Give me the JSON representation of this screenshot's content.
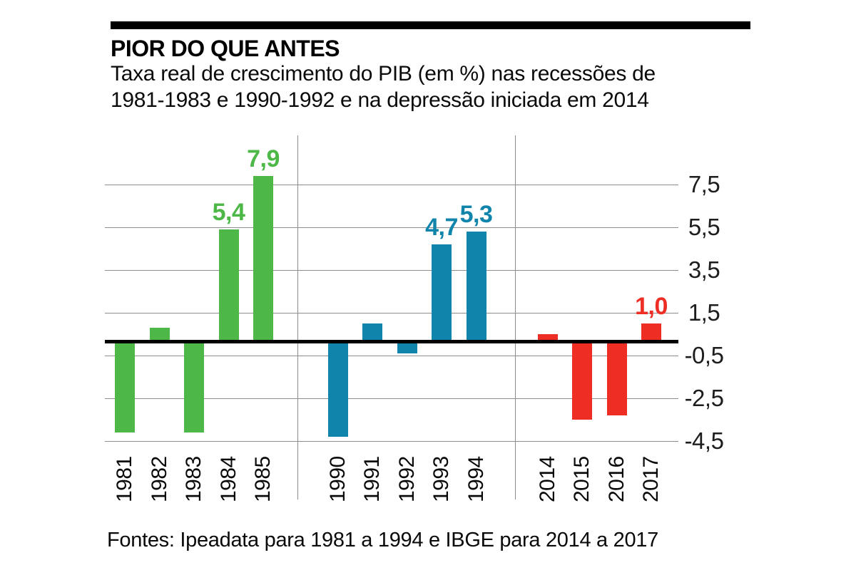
{
  "header": {
    "title": "PIOR DO QUE ANTES",
    "subtitle_line1": "Taxa real de crescimento do PIB (em %) nas recessões de",
    "subtitle_line2": "1981-1983 e 1990-1992 e na depressão iniciada em 2014"
  },
  "footer": {
    "source": "Fontes: Ipeadata para 1981 a 1994 e IBGE para 2014 a 2017"
  },
  "colors": {
    "green_recession_1981": "#4DB848",
    "blue_recession_1990": "#1184AC",
    "red_depression_2014": "#EE2E24",
    "gridline": "#8c8c8c",
    "zero_line": "#000000",
    "text": "#0a0a0a"
  },
  "chart_data": {
    "type": "bar",
    "title": "PIOR DO QUE ANTES",
    "subtitle": "Taxa real de crescimento do PIB (em %) nas recessões de 1981-1983 e 1990-1992 e na depressão iniciada em 2014",
    "xlabel": "",
    "ylabel": "",
    "ylim": [
      -5.3,
      9.8
    ],
    "grid": true,
    "legend": false,
    "decimal_separator": ",",
    "yticks": [
      {
        "label": "7,5",
        "value": 7.5
      },
      {
        "label": "5,5",
        "value": 5.5
      },
      {
        "label": "3,5",
        "value": 3.5
      },
      {
        "label": "1,5",
        "value": 1.5
      },
      {
        "label": "-0,5",
        "value": -0.5
      },
      {
        "label": "-2,5",
        "value": -2.5
      },
      {
        "label": "-4,5",
        "value": -4.5
      }
    ],
    "groups": [
      {
        "id": "recessao-1981-1983",
        "color": "#4DB848",
        "bars": [
          {
            "year": "1981",
            "value": -4.1,
            "label": ""
          },
          {
            "year": "1982",
            "value": 0.8,
            "label": ""
          },
          {
            "year": "1983",
            "value": -4.1,
            "label": ""
          },
          {
            "year": "1984",
            "value": 5.4,
            "label": "5,4"
          },
          {
            "year": "1985",
            "value": 7.9,
            "label": "7,9"
          }
        ]
      },
      {
        "id": "recessao-1990-1992",
        "color": "#1184AC",
        "bars": [
          {
            "year": "1990",
            "value": -4.3,
            "label": ""
          },
          {
            "year": "1991",
            "value": 1.0,
            "label": ""
          },
          {
            "year": "1992",
            "value": -0.4,
            "label": ""
          },
          {
            "year": "1993",
            "value": 4.7,
            "label": "4,7"
          },
          {
            "year": "1994",
            "value": 5.3,
            "label": "5,3"
          }
        ]
      },
      {
        "id": "depressao-2014",
        "color": "#EE2E24",
        "bars": [
          {
            "year": "2014",
            "value": 0.5,
            "label": ""
          },
          {
            "year": "2015",
            "value": -3.5,
            "label": ""
          },
          {
            "year": "2016",
            "value": -3.3,
            "label": ""
          },
          {
            "year": "2017",
            "value": 1.0,
            "label": "1,0"
          }
        ]
      }
    ],
    "source": "Fontes: Ipeadata para 1981 a 1994 e IBGE para 2014 a 2017"
  }
}
